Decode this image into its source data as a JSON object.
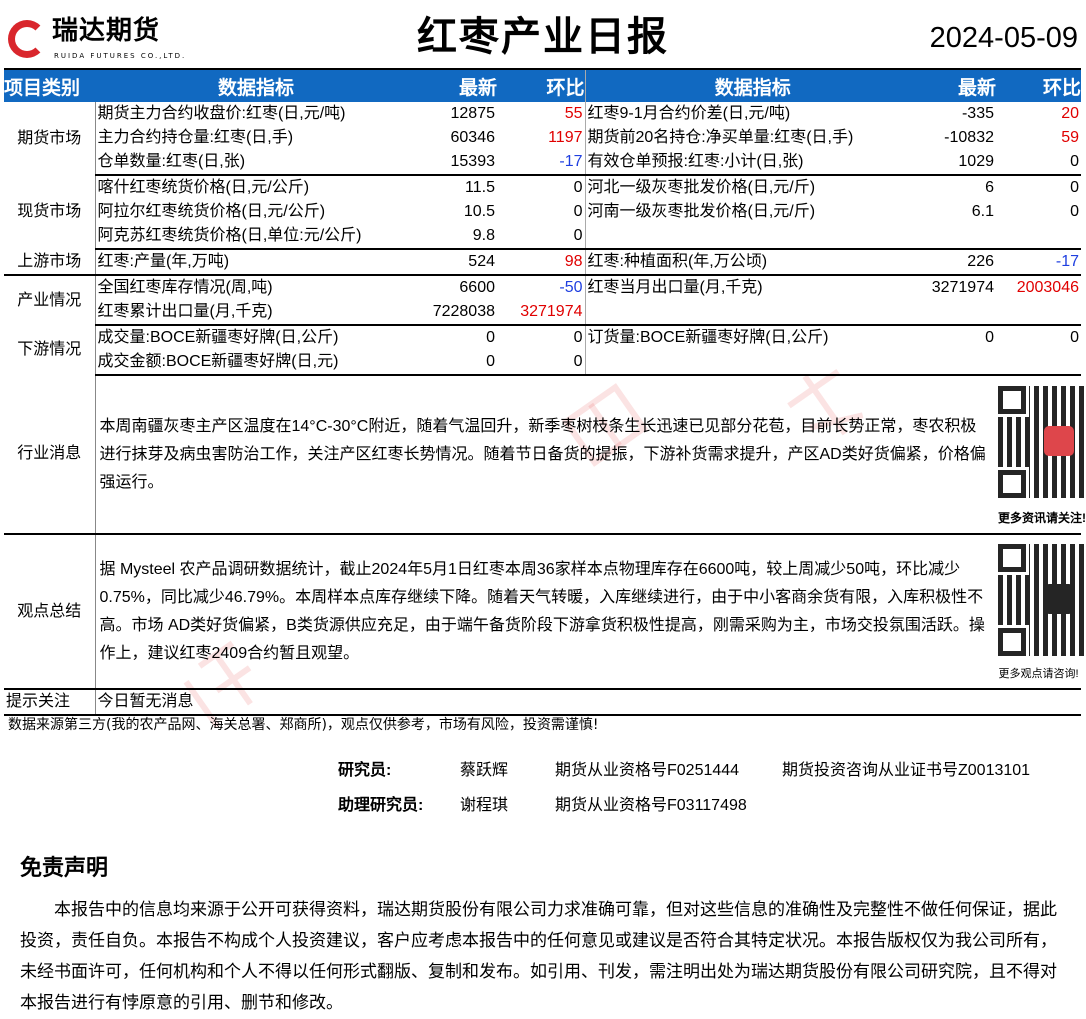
{
  "header": {
    "logo_cn": "瑞达期货",
    "logo_en": "RUIDA FUTURES CO.,LTD.",
    "title": "红枣产业日报",
    "date": "2024-05-09"
  },
  "table": {
    "headers": [
      "项目类别",
      "数据指标",
      "最新",
      "环比",
      "数据指标",
      "最新",
      "环比"
    ],
    "sections": [
      {
        "category": "期货市场",
        "rows": [
          [
            "期货主力合约收盘价:红枣(日,元/吨)",
            "12875",
            "55",
            "红枣9-1月合约价差(日,元/吨)",
            "-335",
            "20"
          ],
          [
            "主力合约持仓量:红枣(日,手)",
            "60346",
            "1197",
            "期货前20名持仓:净买单量:红枣(日,手)",
            "-10832",
            "59"
          ],
          [
            "仓单数量:红枣(日,张)",
            "15393",
            "-17",
            "有效仓单预报:红枣:小计(日,张)",
            "1029",
            "0"
          ]
        ]
      },
      {
        "category": "现货市场",
        "rows": [
          [
            "喀什红枣统货价格(日,元/公斤)",
            "11.5",
            "0",
            "河北一级灰枣批发价格(日,元/斤)",
            "6",
            "0"
          ],
          [
            "阿拉尔红枣统货价格(日,元/公斤)",
            "10.5",
            "0",
            "河南一级灰枣批发价格(日,元/斤)",
            "6.1",
            "0"
          ],
          [
            "阿克苏红枣统货价格(日,单位:元/公斤)",
            "9.8",
            "0",
            "",
            "",
            ""
          ]
        ]
      },
      {
        "category": "上游市场",
        "rows": [
          [
            "红枣:产量(年,万吨)",
            "524",
            "98",
            "红枣:种植面积(年,万公顷)",
            "226",
            "-17"
          ]
        ]
      },
      {
        "category": "产业情况",
        "rows": [
          [
            "全国红枣库存情况(周,吨)",
            "6600",
            "-50",
            "红枣当月出口量(月,千克)",
            "3271974",
            "2003046"
          ],
          [
            "红枣累计出口量(月,千克)",
            "7228038",
            "3271974",
            "",
            "",
            ""
          ]
        ]
      },
      {
        "category": "下游情况",
        "rows": [
          [
            "成交量:BOCE新疆枣好牌(日,公斤)",
            "0",
            "0",
            "订货量:BOCE新疆枣好牌(日,公斤)",
            "0",
            "0"
          ],
          [
            "成交金额:BOCE新疆枣好牌(日,元)",
            "0",
            "0",
            "",
            "",
            ""
          ]
        ]
      }
    ]
  },
  "news": {
    "category": "行业消息",
    "text": "本周南疆灰枣主产区温度在14°C-30°C附近，随着气温回升，新季枣树枝条生长迅速已见部分花苞，目前长势正常，枣农积极进行抹芽及病虫害防治工作，关注产区红枣长势情况。随着节日备货的提振，下游补货需求提升，产区AD类好货偏紧，价格偏强运行。",
    "qr_caption": "更多资讯请关注!"
  },
  "summary": {
    "category": "观点总结",
    "text": "据 Mysteel 农产品调研数据统计，截止2024年5月1日红枣本周36家样本点物理库存在6600吨，较上周减少50吨，环比减少0.75%，同比减少46.79%。本周样本点库存继续下降。随着天气转暖，入库继续进行，由于中小客商余货有限，入库积极性不高。市场 AD类好货偏紧，B类货源供应充足，由于端午备货阶段下游拿货积极性提高，刚需采购为主，市场交投氛围活跃。操作上，建议红枣2409合约暂且观望。",
    "qr_caption": "更多观点请咨询!"
  },
  "alert": {
    "category": "提示关注",
    "text": "今日暂无消息"
  },
  "source_note": "数据来源第三方(我的农产品网、海关总署、郑商所)，观点仅供参考，市场有风险，投资需谨慎!",
  "researchers": [
    {
      "role": "研究员:",
      "name": "蔡跃辉",
      "qual": "期货从业资格号F0251444",
      "consult": "期货投资咨询从业证书号Z0013101"
    },
    {
      "role": "助理研究员:",
      "name": "谢程琪",
      "qual": "期货从业资格号F03117498",
      "consult": ""
    }
  ],
  "disclaimer": {
    "title": "免责声明",
    "text": "本报告中的信息均来源于公开可获得资料，瑞达期货股份有限公司力求准确可靠，但对这些信息的准确性及完整性不做任何保证，据此投资，责任自负。本报告不构成个人投资建议，客户应考虑本报告中的任何意见或建议是否符合其特定状况。本报告版权仅为我公司所有，未经书面许可，任何机构和个人不得以任何形式翻版、复制和发布。如引用、刊发，需注明出处为瑞达期货股份有限公司研究院，且不得对本报告进行有悖原意的引用、删节和修改。"
  },
  "watermark": "瑞达研究",
  "colors": {
    "header_bg": "#1169c1",
    "up": "#e00000",
    "down": "#1f3fe0",
    "brand": "#d9262c"
  }
}
